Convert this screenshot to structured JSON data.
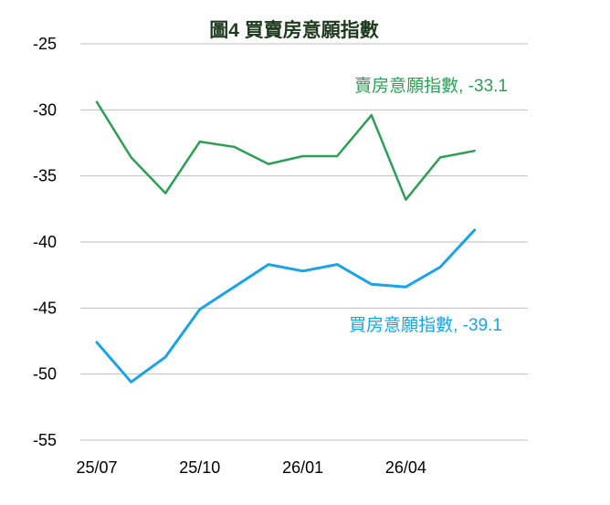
{
  "chart_data": {
    "type": "line",
    "title": "圖4  買賣房意願指數",
    "xlabel": "",
    "ylabel": "",
    "x_tick_labels": [
      "25/07",
      "25/10",
      "26/01",
      "26/04"
    ],
    "x_tick_index": [
      0,
      3,
      6,
      9
    ],
    "y_ticks": [
      -25,
      -30,
      -35,
      -40,
      -45,
      -50,
      -55
    ],
    "y_tick_labels": [
      "-25",
      "-30",
      "-35",
      "-40",
      "-45",
      "-50",
      "-55"
    ],
    "ylim": [
      -55,
      -25
    ],
    "grid": true,
    "series": [
      {
        "name": "賣房意願指數",
        "label": "賣房意願指數, -33.1",
        "color": "#2e9e57",
        "values": [
          -29.4,
          -33.6,
          -36.3,
          -32.4,
          -32.8,
          -34.1,
          -33.5,
          -33.5,
          -30.4,
          -36.8,
          -33.6,
          -33.1
        ]
      },
      {
        "name": "買房意願指數",
        "label": "買房意願指數, -39.1",
        "color": "#1aa3e8",
        "values": [
          -47.6,
          -50.6,
          -48.7,
          -45.1,
          -43.4,
          -41.7,
          -42.2,
          -41.7,
          -43.2,
          -43.4,
          -41.9,
          -39.1
        ]
      }
    ]
  }
}
